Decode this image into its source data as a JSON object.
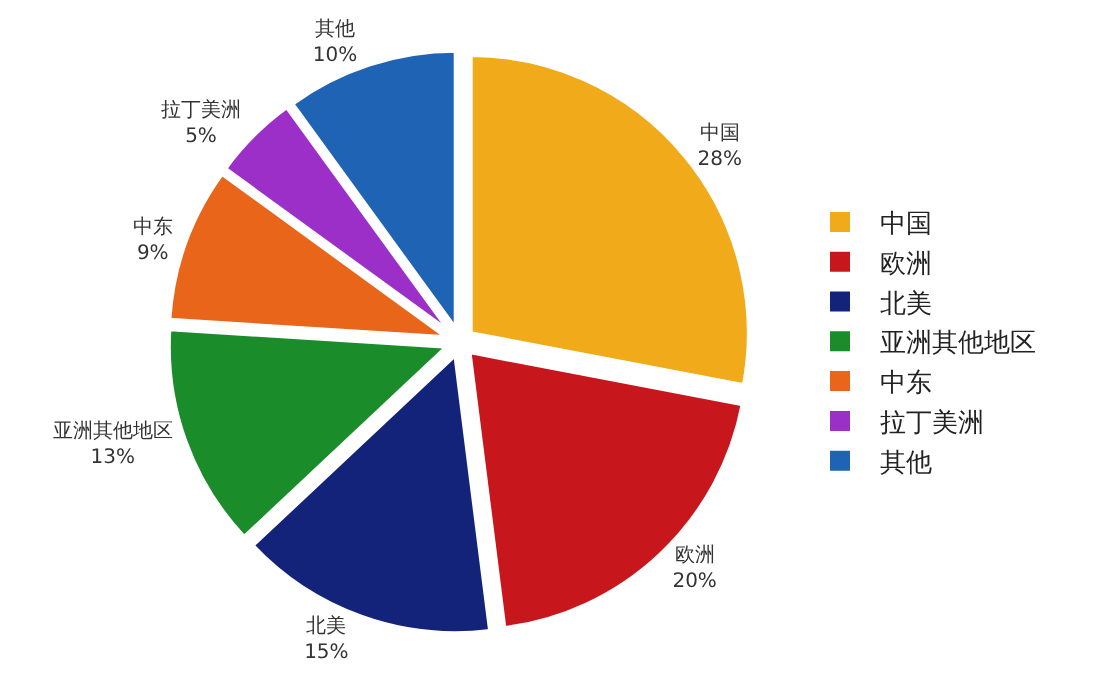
{
  "chart_data": {
    "type": "pie",
    "categories": [
      "中国",
      "欧洲",
      "北美",
      "亚洲其他地区",
      "中东",
      "拉丁美洲",
      "其他"
    ],
    "values": [
      28,
      20,
      15,
      13,
      9,
      5,
      10
    ],
    "value_labels": [
      "28%",
      "20%",
      "15%",
      "13%",
      "9%",
      "5%",
      "10%"
    ],
    "colors": [
      "#f0aa1a",
      "#c8161d",
      "#13237a",
      "#1a8c2a",
      "#e8651a",
      "#9b2fc7",
      "#1f63b5"
    ],
    "legend": "right"
  }
}
